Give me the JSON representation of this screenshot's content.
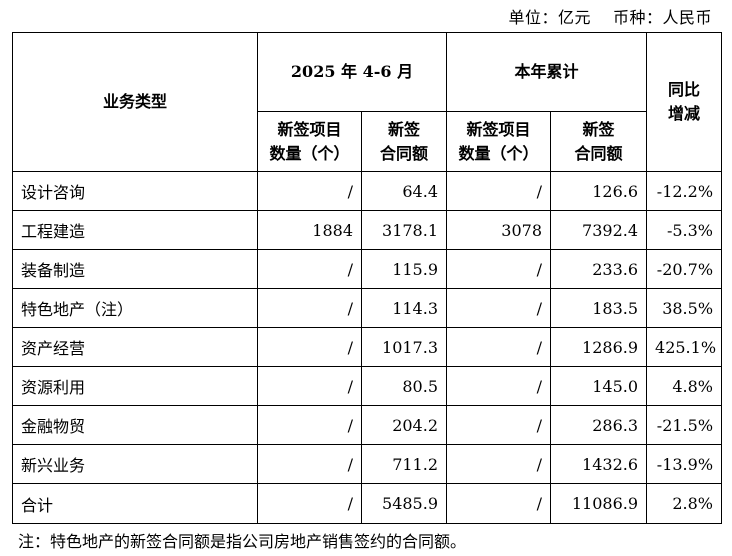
{
  "unit": {
    "unit_text": "单位：亿元",
    "currency_text": "币种：人民币"
  },
  "table": {
    "header": {
      "business_type": "业务类型",
      "period_current": "2025 年 4-6 月",
      "period_ytd": "本年累计",
      "yoy": "同比\n增减",
      "sub_count": "新签项目\n数量（个）",
      "sub_amount": "新签\n合同额"
    },
    "rows": [
      {
        "category": "设计咨询",
        "q_count": "/",
        "q_amount": "64.4",
        "ytd_count": "/",
        "ytd_amount": "126.6",
        "yoy": "-12.2%"
      },
      {
        "category": "工程建造",
        "q_count": "1884",
        "q_amount": "3178.1",
        "ytd_count": "3078",
        "ytd_amount": "7392.4",
        "yoy": "-5.3%"
      },
      {
        "category": "装备制造",
        "q_count": "/",
        "q_amount": "115.9",
        "ytd_count": "/",
        "ytd_amount": "233.6",
        "yoy": "-20.7%"
      },
      {
        "category": "特色地产（注）",
        "q_count": "/",
        "q_amount": "114.3",
        "ytd_count": "/",
        "ytd_amount": "183.5",
        "yoy": "38.5%"
      },
      {
        "category": "资产经营",
        "q_count": "/",
        "q_amount": "1017.3",
        "ytd_count": "/",
        "ytd_amount": "1286.9",
        "yoy": "425.1%"
      },
      {
        "category": "资源利用",
        "q_count": "/",
        "q_amount": "80.5",
        "ytd_count": "/",
        "ytd_amount": "145.0",
        "yoy": "4.8%"
      },
      {
        "category": "金融物贸",
        "q_count": "/",
        "q_amount": "204.2",
        "ytd_count": "/",
        "ytd_amount": "286.3",
        "yoy": "-21.5%"
      },
      {
        "category": "新兴业务",
        "q_count": "/",
        "q_amount": "711.2",
        "ytd_count": "/",
        "ytd_amount": "1432.6",
        "yoy": "-13.9%"
      }
    ],
    "total": {
      "category": "合计",
      "q_count": "/",
      "q_amount": "5485.9",
      "ytd_count": "/",
      "ytd_amount": "11086.9",
      "yoy": "2.8%"
    }
  },
  "note": "注：特色地产的新签合同额是指公司房地产销售签约的合同额。"
}
